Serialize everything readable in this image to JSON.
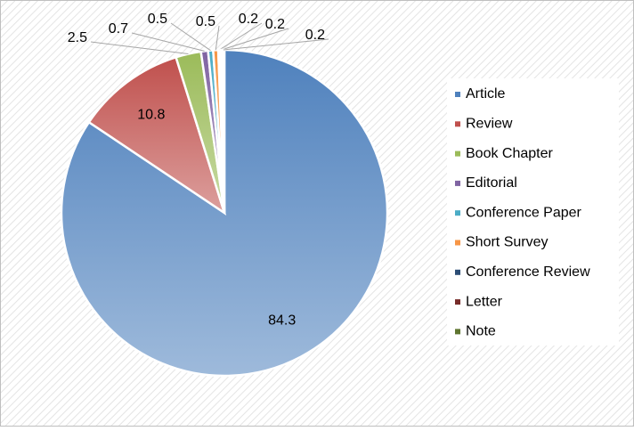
{
  "chart_data": {
    "type": "pie",
    "categories": [
      "Article",
      "Review",
      "Book Chapter",
      "Editorial",
      "Conference Paper",
      "Short Survey",
      "Conference Review",
      "Letter",
      "Note"
    ],
    "values": [
      84.3,
      10.8,
      2.5,
      0.7,
      0.5,
      0.5,
      0.2,
      0.2,
      0.2
    ],
    "colors": [
      "#4f81bd",
      "#c0504d",
      "#9bbb59",
      "#8064a2",
      "#4bacc6",
      "#f79646",
      "#2c4d75",
      "#772c2a",
      "#5f7530"
    ],
    "legend": "right"
  }
}
